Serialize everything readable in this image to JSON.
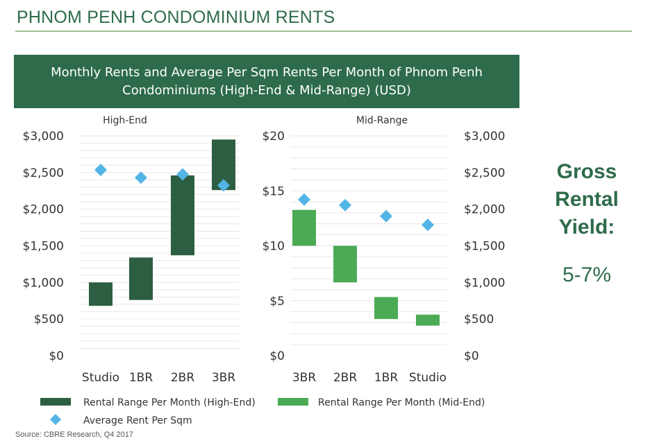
{
  "header": {
    "title": "PHNOM PENH CONDOMINIUM RENTS"
  },
  "banner": {
    "line1": "Monthly Rents and Average Per Sqm Rents Per Month of Phnom Penh",
    "line2": "Condominiums (High-End & Mid-Range) (USD)"
  },
  "side_note": {
    "line1": "Gross",
    "line2": "Rental",
    "line3": "Yield:",
    "value": "5-7%"
  },
  "source": "Source: CBRE Research, Q4 2017",
  "colors": {
    "brand_green": "#2e6b4a",
    "high_end_bar": "#2c5e42",
    "mid_range_bar": "#4caa55",
    "marker": "#52b5e6",
    "rule": "#9ec394"
  },
  "chart_data": [
    {
      "type": "bar",
      "panel_label": "High-End",
      "categories": [
        "Studio",
        "1BR",
        "2BR",
        "3BR"
      ],
      "y_ticks": [
        "$0",
        "$500",
        "$1,000",
        "$1,500",
        "$2,000",
        "$2,500",
        "$3,000"
      ],
      "ylim": [
        0,
        3000
      ],
      "grid": true,
      "series": [
        {
          "name": "Rental Range Per Month (High-End)",
          "kind": "floating-bar",
          "ranges": [
            [
              680,
              1000
            ],
            [
              760,
              1340
            ],
            [
              1370,
              2460
            ],
            [
              2260,
              2950
            ]
          ]
        },
        {
          "name": "Average Rent Per Sqm",
          "kind": "marker",
          "axis": "right",
          "values": [
            16.9,
            16.2,
            16.5,
            15.5
          ]
        }
      ]
    },
    {
      "type": "bar",
      "panel_label": "Mid-Range",
      "categories": [
        "3BR",
        "2BR",
        "1BR",
        "Studio"
      ],
      "y_ticks_left": [
        "$0",
        "$5",
        "$10",
        "$15",
        "$20"
      ],
      "y_ticks_right": [
        "$0",
        "$500",
        "$1,000",
        "$1,500",
        "$2,000",
        "$2,500",
        "$3,000"
      ],
      "ylim_left": [
        0,
        20
      ],
      "ylim_right": [
        0,
        3000
      ],
      "grid": true,
      "series": [
        {
          "name": "Rental Range Per Month (Mid-End)",
          "kind": "floating-bar",
          "axis": "right",
          "ranges": [
            [
              1500,
              1990
            ],
            [
              1000,
              1500
            ],
            [
              500,
              800
            ],
            [
              410,
              560
            ]
          ]
        },
        {
          "name": "Average Rent Per Sqm",
          "kind": "marker",
          "axis": "left",
          "values": [
            14.2,
            13.7,
            12.7,
            11.9
          ]
        }
      ]
    }
  ],
  "legend": [
    {
      "label": "Rental Range Per Month (High-End)",
      "color": "#2c5e42",
      "shape": "rect"
    },
    {
      "label": "Rental Range Per Month (Mid-End)",
      "color": "#4caa55",
      "shape": "rect"
    },
    {
      "label": "Average Rent Per Sqm",
      "color": "#52b5e6",
      "shape": "diamond"
    }
  ]
}
